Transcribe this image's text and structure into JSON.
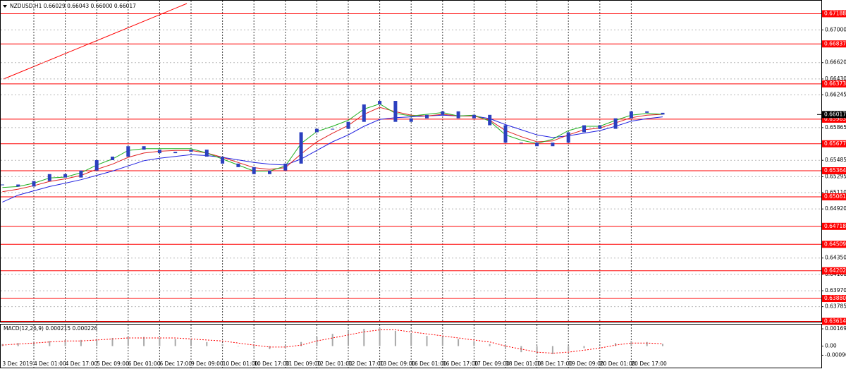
{
  "chart_data": [
    {
      "type": "candlestick",
      "title": "NZDUSD,H1  0.66029 0.66043 0.66000 0.66017",
      "categories": [
        "3 Dec 2019",
        null,
        "4 Dec 01:00",
        null,
        "4 Dec 17:00",
        null,
        "5 Dec 09:00",
        null,
        "6 Dec 01:00",
        null,
        "6 Dec 17:00",
        null,
        "9 Dec 09:00",
        null,
        "10 Dec 01:00",
        null,
        "10 Dec 17:00",
        null,
        "11 Dec 09:00",
        null,
        "12 Dec 01:00",
        null,
        "12 Dec 17:00",
        null,
        "13 Dec 09:00",
        null,
        "16 Dec 01:00",
        null,
        "16 Dec 17:00",
        null,
        "17 Dec 09:00",
        null,
        "18 Dec 01:00",
        null,
        "18 Dec 17:00",
        null,
        "19 Dec 09:00",
        null,
        "20 Dec 01:00",
        null,
        "20 Dec 17:00",
        null,
        null
      ],
      "values": [
        0.65204,
        0.6518,
        0.65244,
        0.65325,
        0.65285,
        0.65366,
        0.65487,
        0.65528,
        0.65649,
        0.65609,
        0.65568,
        0.65584,
        0.65609,
        0.65528,
        0.65447,
        0.65406,
        0.65325,
        0.65366,
        0.65447,
        0.65811,
        0.65851,
        0.65851,
        0.65932,
        0.66134,
        0.66175,
        0.65932,
        0.65973,
        0.66013,
        0.66054,
        0.65973,
        0.66013,
        0.65892,
        0.6569,
        0.6569,
        0.65649,
        0.6569,
        0.65811,
        0.65892,
        0.65851,
        0.65973,
        0.66054,
        0.66037,
        0.66017
      ],
      "color": "#2b3fbf",
      "overlays": [
        {
          "color": "#2020e0",
          "values": [
            0.65,
            0.6508,
            0.6513,
            0.6518,
            0.6522,
            0.6526,
            0.6531,
            0.6536,
            0.6542,
            0.6548,
            0.6551,
            0.6553,
            0.6555,
            0.6554,
            0.6552,
            0.6549,
            0.6546,
            0.6544,
            0.6543,
            0.655,
            0.656,
            0.657,
            0.6578,
            0.6588,
            0.6596,
            0.6598,
            0.6599,
            0.66,
            0.6601,
            0.66,
            0.66,
            0.6597,
            0.659,
            0.6584,
            0.6578,
            0.6575,
            0.6577,
            0.658,
            0.6583,
            0.6588,
            0.6594,
            0.6597,
            0.6599
          ]
        },
        {
          "color": "#e02020",
          "values": [
            0.6512,
            0.6515,
            0.6519,
            0.6524,
            0.6527,
            0.6531,
            0.6538,
            0.6544,
            0.6552,
            0.6557,
            0.6559,
            0.656,
            0.656,
            0.6557,
            0.6552,
            0.6546,
            0.654,
            0.6538,
            0.654,
            0.6556,
            0.657,
            0.658,
            0.6589,
            0.6602,
            0.661,
            0.6605,
            0.6601,
            0.66,
            0.6602,
            0.66,
            0.66,
            0.6595,
            0.6583,
            0.6576,
            0.657,
            0.6571,
            0.6578,
            0.6584,
            0.6586,
            0.6592,
            0.6598,
            0.6601,
            0.6602
          ]
        },
        {
          "color": "#20b020",
          "values": [
            0.6517,
            0.6518,
            0.6522,
            0.6528,
            0.6529,
            0.6534,
            0.6543,
            0.655,
            0.656,
            0.6562,
            0.6562,
            0.6562,
            0.6562,
            0.6557,
            0.655,
            0.6543,
            0.6536,
            0.6536,
            0.6542,
            0.6568,
            0.6582,
            0.6588,
            0.6595,
            0.6608,
            0.6614,
            0.6603,
            0.66,
            0.6602,
            0.6604,
            0.66,
            0.6601,
            0.6594,
            0.6578,
            0.6572,
            0.6568,
            0.6573,
            0.6583,
            0.6588,
            0.6588,
            0.6595,
            0.6601,
            0.6603,
            0.6602
          ]
        }
      ],
      "levels": [
        0.67188,
        0.66837,
        0.66373,
        0.65963,
        0.65677,
        0.65364,
        0.65061,
        0.64718,
        0.64509,
        0.64202,
        {
          "value": 0.6388,
          "label": "0.63880"
        },
        0.63614
      ],
      "level_color": "#ff0000",
      "ylim": [
        0.6361,
        0.6729
      ],
      "yticks": [
        {
          "value": 0.67,
          "label": "0.67000"
        },
        {
          "value": 0.6662,
          "label": "0.66620"
        },
        {
          "value": 0.6643,
          "label": "0.66430"
        },
        0.66245,
        0.65865,
        0.65485,
        0.65295,
        {
          "value": 0.6511,
          "label": "0.65110"
        },
        {
          "value": 0.6492,
          "label": "0.64920"
        },
        {
          "value": 0.6435,
          "label": "0.64350"
        },
        {
          "value": 0.6416,
          "label": "0.64160"
        },
        {
          "value": 0.6397,
          "label": "0.63970"
        },
        0.63785
      ],
      "grid": true
    },
    {
      "type": "macd",
      "title": "MACD(12,26,9) 0.000215 0.000226",
      "values": [
        0.0002,
        0.0003,
        0.0004,
        0.0005,
        0.0006,
        0.0006,
        0.0007,
        0.0008,
        0.0009,
        0.0009,
        0.0008,
        0.0007,
        0.0006,
        0.0004,
        0.0002,
        0,
        -0.0002,
        -0.0003,
        -0.0002,
        0.0004,
        0.0009,
        0.0012,
        0.0014,
        0.0017,
        0.0018,
        0.0015,
        0.0012,
        0.001,
        0.0009,
        0.0007,
        0.0005,
        0.0002,
        -0.0003,
        -0.0006,
        -0.0008,
        -0.0008,
        -0.0005,
        -0.0002,
        0,
        0.0003,
        0.0005,
        0.0004,
        0.000215
      ],
      "color": "#a8a8a8",
      "signal": {
        "color": "#ff0000",
        "values": [
          0.0001,
          0.0002,
          0.0003,
          0.0004,
          0.0005,
          0.0005,
          0.0006,
          0.0007,
          0.0008,
          0.0008,
          0.0008,
          0.0008,
          0.0007,
          0.0006,
          0.0005,
          0.0003,
          0.0001,
          -0.0001,
          -0.0001,
          0.0001,
          0.0005,
          0.0008,
          0.0011,
          0.0014,
          0.0016,
          0.0016,
          0.0014,
          0.0012,
          0.001,
          0.0008,
          0.0006,
          0.0004,
          0,
          -0.0003,
          -0.0006,
          -0.0007,
          -0.0006,
          -0.0004,
          -0.0002,
          0.0001,
          0.0003,
          0.0003,
          0.000226
        ]
      },
      "ylim": [
        -0.00212,
        0.00212
      ],
      "yticks": [
        0.001698,
        {
          "value": 0,
          "label": "0.00"
        },
        -0.000901
      ]
    }
  ]
}
